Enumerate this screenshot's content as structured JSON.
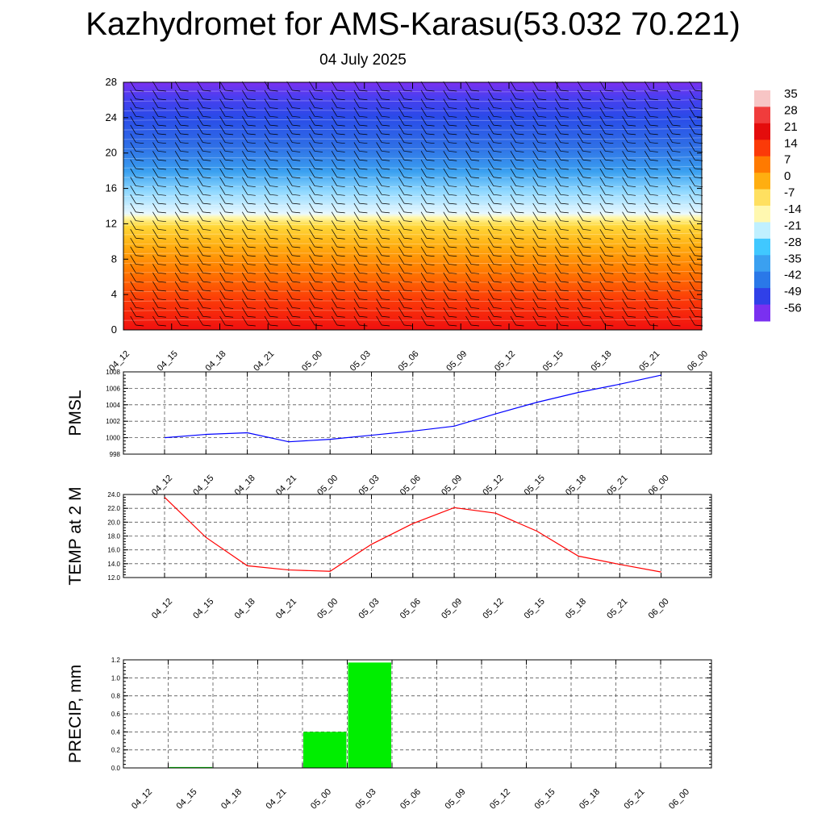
{
  "title": "Kazhydromet for AMS-Karasu(53.032 70.221)",
  "subtitle": "04 July 2025",
  "chart_data": [
    {
      "type": "heatmap",
      "title": "",
      "xlabel": "",
      "ylabel": "",
      "x_ticks": [
        "04_12",
        "04_15",
        "04_18",
        "04_21",
        "05_00",
        "05_03",
        "05_06",
        "05_09",
        "05_12",
        "05_15",
        "05_18",
        "05_21",
        "06_00"
      ],
      "ylim": [
        0,
        28
      ],
      "y_ticks": [
        0,
        4,
        8,
        12,
        16,
        20,
        24,
        28
      ],
      "colorbar_labels": [
        "35",
        "28",
        "21",
        "14",
        "7",
        "0",
        "-7",
        "-14",
        "-21",
        "-28",
        "-35",
        "-42",
        "-49",
        "-56"
      ],
      "colorbar_colors": [
        "#f7c5c5",
        "#f03c3c",
        "#e40c0c",
        "#fb3a08",
        "#ff7a00",
        "#ffae10",
        "#ffe060",
        "#fff8b0",
        "#c0f0ff",
        "#40c8ff",
        "#3aa0f0",
        "#2a78e8",
        "#3040e8",
        "#7a30f0"
      ],
      "temperature_profile": [
        {
          "level": 0,
          "value": 18
        },
        {
          "level": 6,
          "value": 10
        },
        {
          "level": 12,
          "value": -10
        },
        {
          "level": 16,
          "value": -30
        },
        {
          "level": 22,
          "value": -45
        },
        {
          "level": 26,
          "value": -56
        }
      ],
      "wind_barbs": "shown"
    },
    {
      "type": "line",
      "ylabel": "PMSL",
      "categories": [
        "04_12",
        "04_15",
        "04_18",
        "04_21",
        "05_00",
        "05_03",
        "05_06",
        "05_09",
        "05_12",
        "05_15",
        "05_18",
        "05_21",
        "06_00"
      ],
      "series": [
        {
          "color": "#0000ff",
          "values": [
            1000.0,
            1000.4,
            1000.6,
            999.5,
            999.8,
            1000.3,
            1000.8,
            1001.4,
            1002.9,
            1004.3,
            1005.5,
            1006.5,
            1007.6
          ]
        }
      ],
      "ylim": [
        998,
        1008
      ],
      "y_ticks": [
        "998",
        "1000",
        "1002",
        "1004",
        "1006",
        "1008"
      ],
      "grid": true
    },
    {
      "type": "line",
      "ylabel": "TEMP at 2 M",
      "categories": [
        "04_12",
        "04_15",
        "04_18",
        "04_21",
        "05_00",
        "05_03",
        "05_06",
        "05_09",
        "05_12",
        "05_15",
        "05_18",
        "05_21",
        "06_00"
      ],
      "series": [
        {
          "color": "#ff0000",
          "values": [
            23.6,
            17.8,
            13.7,
            13.1,
            12.9,
            16.8,
            19.8,
            22.1,
            21.3,
            18.7,
            15.1,
            13.9,
            12.8
          ]
        }
      ],
      "ylim": [
        12.0,
        24.0
      ],
      "y_ticks": [
        "12.0",
        "14.0",
        "16.0",
        "18.0",
        "20.0",
        "22.0",
        "24.0"
      ],
      "grid": true
    },
    {
      "type": "bar",
      "ylabel": "PRECIP, mm",
      "categories": [
        "04_12",
        "04_15",
        "04_18",
        "04_21",
        "05_00",
        "05_03",
        "05_06",
        "05_09",
        "05_12",
        "05_15",
        "05_18",
        "05_21",
        "06_00"
      ],
      "series": [
        {
          "color": "#00ee00",
          "values": [
            0,
            0.01,
            0,
            0,
            0.4,
            1.17,
            0,
            0,
            0,
            0,
            0,
            0,
            0
          ]
        }
      ],
      "ylim": [
        0,
        1.2
      ],
      "y_ticks": [
        "0.0",
        "0.2",
        "0.4",
        "0.6",
        "0.8",
        "1.0",
        "1.2"
      ],
      "grid": true
    }
  ]
}
